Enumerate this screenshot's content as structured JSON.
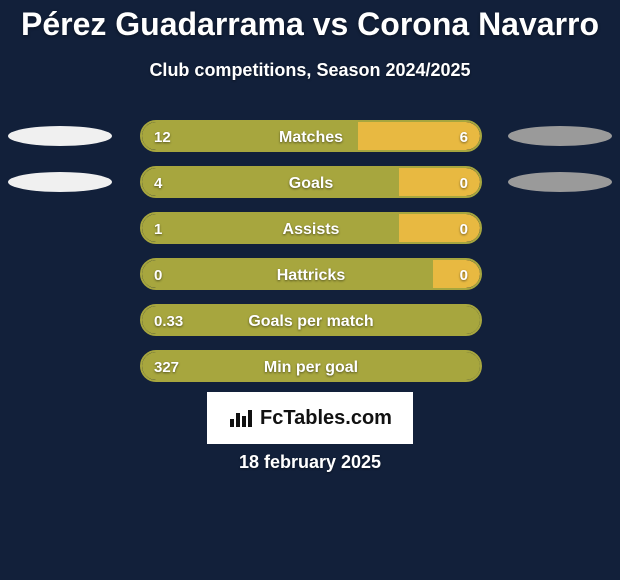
{
  "colors": {
    "background": "#12203a",
    "text_light": "#ffffff",
    "bar_left_fill": "#a7a63e",
    "bar_right_fill": "#e8b941",
    "bar_border": "#a7a63e",
    "ellipse_left": "#f0f0f0",
    "ellipse_right": "#9a9a9a",
    "brand_bg": "#ffffff",
    "brand_text": "#111111"
  },
  "title": "Pérez Guadarrama vs Corona Navarro",
  "subtitle": "Club competitions, Season 2024/2025",
  "brand": "FcTables.com",
  "date_line": "18 february 2025",
  "ellipse": {
    "left_w": 104,
    "right_w": 104,
    "rows_with_ellipses": 2
  },
  "rows": [
    {
      "label": "Matches",
      "left_val": "12",
      "right_val": "6",
      "left_pct": 64,
      "right_pct": 36
    },
    {
      "label": "Goals",
      "left_val": "4",
      "right_val": "0",
      "left_pct": 76,
      "right_pct": 24
    },
    {
      "label": "Assists",
      "left_val": "1",
      "right_val": "0",
      "left_pct": 76,
      "right_pct": 24
    },
    {
      "label": "Hattricks",
      "left_val": "0",
      "right_val": "0",
      "left_pct": 86,
      "right_pct": 14
    },
    {
      "label": "Goals per match",
      "left_val": "0.33",
      "right_val": "",
      "left_pct": 100,
      "right_pct": 0
    },
    {
      "label": "Min per goal",
      "left_val": "327",
      "right_val": "",
      "left_pct": 100,
      "right_pct": 0
    }
  ]
}
